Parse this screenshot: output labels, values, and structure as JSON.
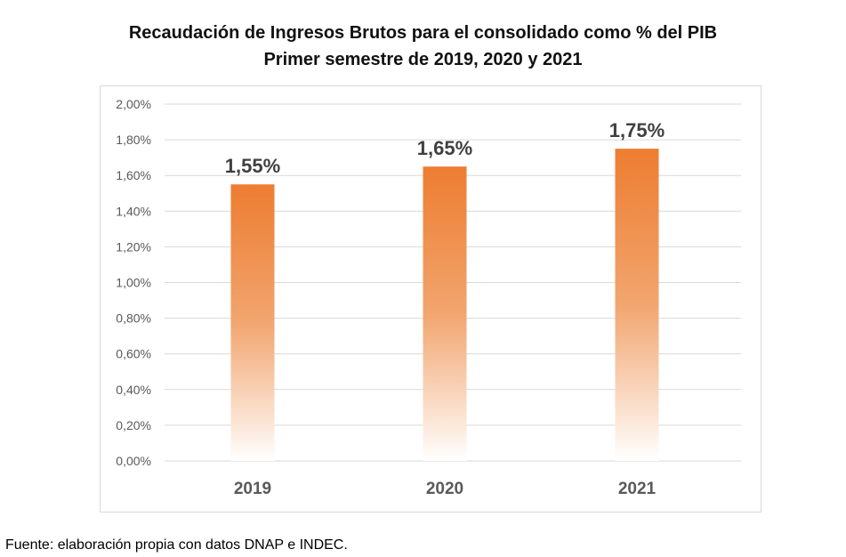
{
  "chart_data": {
    "type": "bar",
    "title": "Recaudación de Ingresos Brutos para el consolidado como % del PIB",
    "subtitle": "Primer semestre de 2019, 2020 y 2021",
    "categories": [
      "2019",
      "2020",
      "2021"
    ],
    "values": [
      1.55,
      1.65,
      1.75
    ],
    "data_labels": [
      "1,55%",
      "1,65%",
      "1,75%"
    ],
    "ylim": [
      0,
      2.0
    ],
    "yticks": [
      "0,00%",
      "0,20%",
      "0,40%",
      "0,60%",
      "0,80%",
      "1,00%",
      "1,20%",
      "1,40%",
      "1,60%",
      "1,80%",
      "2,00%"
    ],
    "grid": true,
    "bar_color": "#ED7D31",
    "bar_fill": "vertical gradient fading to white at bottom"
  },
  "source": "Fuente: elaboración propia con datos DNAP e INDEC."
}
